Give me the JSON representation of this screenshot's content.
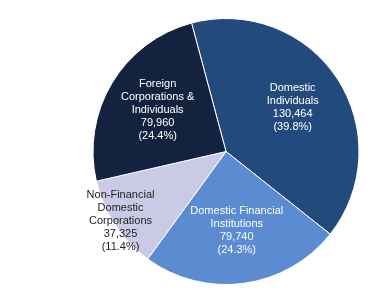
{
  "chart_data": {
    "type": "pie",
    "categories": [
      [
        "Domestic",
        "Individuals"
      ],
      [
        "Domestic Financial",
        "Institutions"
      ],
      [
        "Non-Financial",
        "Domestic",
        "Corporations"
      ],
      [
        "Foreign",
        "Corporations &",
        "Individuals"
      ]
    ],
    "values": [
      130464,
      79740,
      37325,
      79960
    ],
    "value_labels": [
      "130,464",
      "79,740",
      "37,325",
      "79,960"
    ],
    "percents": [
      {
        "value": 39.8,
        "label": "(39.8%)"
      },
      {
        "value": 24.3,
        "label": "(24.3%)"
      },
      {
        "value": 11.4,
        "label": "(11.4%)"
      },
      {
        "value": 24.4,
        "label": "(24.4%)"
      }
    ],
    "colors": [
      "#234a7c",
      "#5b8bd0",
      "#cacae6",
      "#13233f"
    ],
    "data_labels": true,
    "legend": false
  }
}
